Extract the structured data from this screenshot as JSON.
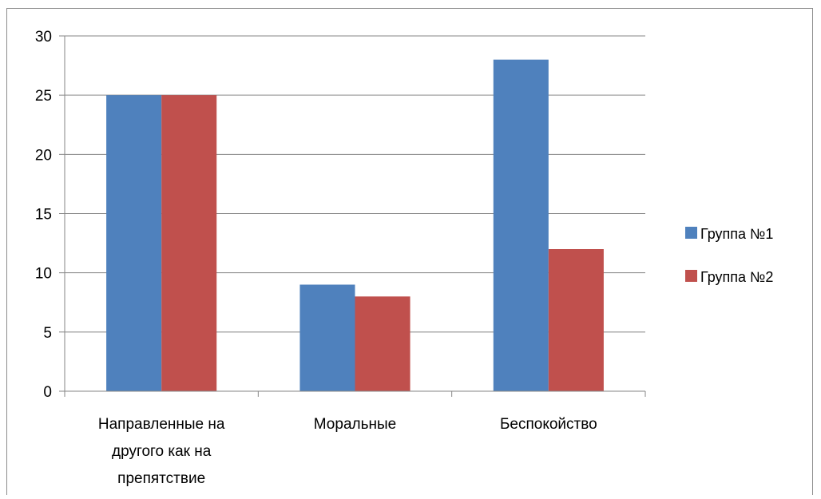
{
  "chart_data": {
    "type": "bar",
    "categories": [
      [
        "Направленные на",
        "другого как на",
        "препятствие"
      ],
      [
        "Моральные"
      ],
      [
        "Беспокойство"
      ]
    ],
    "series": [
      {
        "name": "Группа №1",
        "color": "#4f81bd",
        "values": [
          25,
          9,
          28
        ]
      },
      {
        "name": "Группа №2",
        "color": "#c0504d",
        "values": [
          25,
          8,
          12
        ]
      }
    ],
    "yticks": [
      "0",
      "5",
      "10",
      "15",
      "20",
      "25",
      "30"
    ],
    "ylim": [
      0,
      30
    ],
    "grid": true,
    "legend_position": "right"
  }
}
